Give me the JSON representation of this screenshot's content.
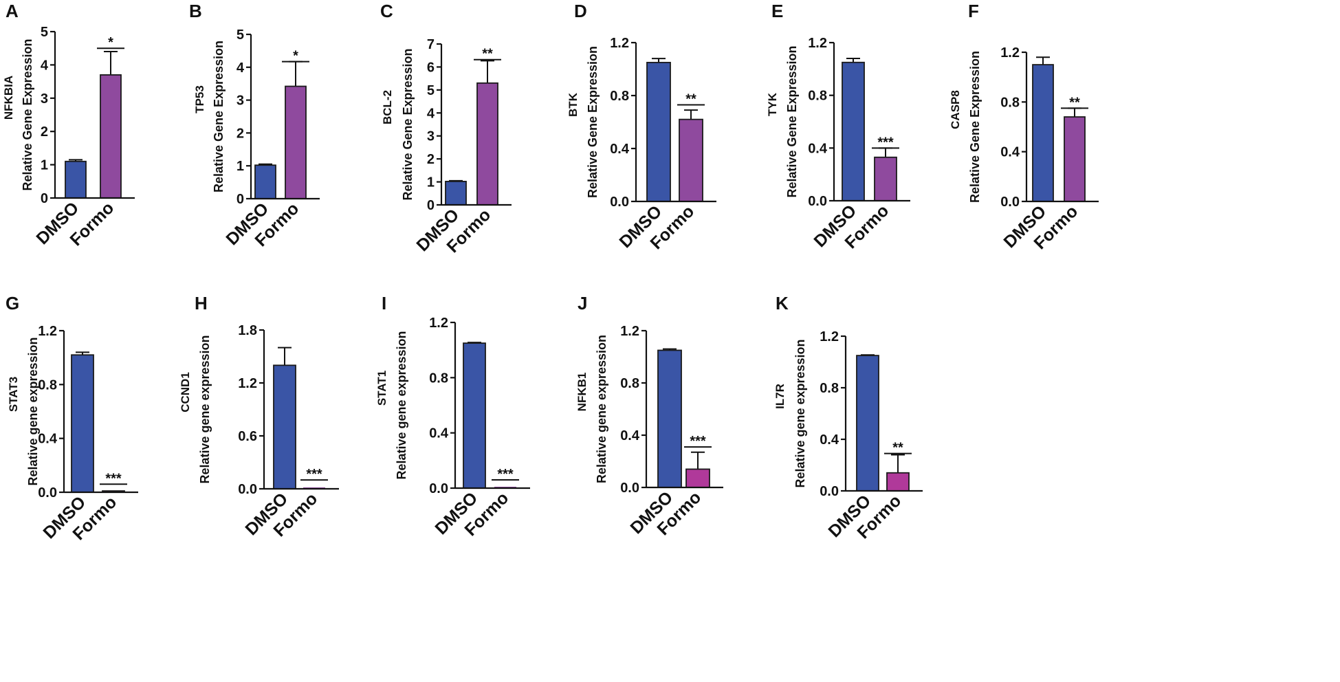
{
  "figure": {
    "categories": [
      "DMSO",
      "Formo"
    ],
    "colors": {
      "dmso": "#3a55a6",
      "formo_a": "#8f4a9e",
      "formo_b": "#b0399a",
      "outline": "#1a1a1a"
    }
  },
  "chart_data": [
    {
      "type": "bar",
      "panel": "A",
      "gene": "NFKBIA",
      "ylabel": "Relative Gene Expression",
      "categories": [
        "DMSO",
        "Formo"
      ],
      "values": [
        1.1,
        3.7
      ],
      "errors": [
        0.05,
        0.7
      ],
      "ylim": [
        0,
        5
      ],
      "yticks": [
        "0",
        "1",
        "2",
        "3",
        "4",
        "5"
      ],
      "significance": "*",
      "sig_line": 4.5
    },
    {
      "type": "bar",
      "panel": "B",
      "gene": "TP53",
      "ylabel": "Relative Gene Expression",
      "categories": [
        "DMSO",
        "Formo"
      ],
      "values": [
        1.02,
        3.42
      ],
      "errors": [
        0.03,
        0.75
      ],
      "ylim": [
        0,
        5
      ],
      "yticks": [
        "0",
        "1",
        "2",
        "3",
        "4",
        "5"
      ],
      "significance": "*",
      "sig_line": 4.17
    },
    {
      "type": "bar",
      "panel": "C",
      "gene": "BCL-2",
      "ylabel": "Relative Gene Expression",
      "categories": [
        "DMSO",
        "Formo"
      ],
      "values": [
        1.02,
        5.3
      ],
      "errors": [
        0.03,
        0.97
      ],
      "ylim": [
        0,
        7
      ],
      "yticks": [
        "0",
        "1",
        "2",
        "3",
        "4",
        "5",
        "6",
        "7"
      ],
      "significance": "**",
      "sig_line": 6.32
    },
    {
      "type": "bar",
      "panel": "D",
      "gene": "BTK",
      "ylabel": "Relative Gene Expression",
      "categories": [
        "DMSO",
        "Formo"
      ],
      "values": [
        1.05,
        0.62
      ],
      "errors": [
        0.03,
        0.07
      ],
      "ylim": [
        0,
        1.2
      ],
      "yticks": [
        "0.0",
        "0.4",
        "0.8",
        "1.2"
      ],
      "significance": "**",
      "sig_line": 0.73
    },
    {
      "type": "bar",
      "panel": "E",
      "gene": "TYK",
      "ylabel": "Relative Gene Expression",
      "categories": [
        "DMSO",
        "Formo"
      ],
      "values": [
        1.05,
        0.33
      ],
      "errors": [
        0.03,
        0.07
      ],
      "ylim": [
        0,
        1.2
      ],
      "yticks": [
        "0.0",
        "0.4",
        "0.8",
        "1.2"
      ],
      "significance": "***",
      "sig_line": 0.4
    },
    {
      "type": "bar",
      "panel": "F",
      "gene": "CASP8",
      "ylabel": "Relative Gene Expression",
      "categories": [
        "DMSO",
        "Formo"
      ],
      "values": [
        1.1,
        0.68
      ],
      "errors": [
        0.06,
        0.07
      ],
      "ylim": [
        0,
        1.2
      ],
      "yticks": [
        "0.0",
        "0.4",
        "0.8",
        "1.2"
      ],
      "significance": "**",
      "sig_line": 0.75
    },
    {
      "type": "bar",
      "panel": "G",
      "gene": "STAT3",
      "ylabel": "Relative gene expression",
      "categories": [
        "DMSO",
        "Formo"
      ],
      "values": [
        1.02,
        0.01
      ],
      "errors": [
        0.02,
        0.0
      ],
      "ylim": [
        0,
        1.2
      ],
      "yticks": [
        "0.0",
        "0.4",
        "0.8",
        "1.2"
      ],
      "significance": "***",
      "sig_line": 0.06
    },
    {
      "type": "bar",
      "panel": "H",
      "gene": "CCND1",
      "ylabel": "Relative gene expression",
      "categories": [
        "DMSO",
        "Formo"
      ],
      "values": [
        1.4,
        0.0
      ],
      "errors": [
        0.2,
        0.0
      ],
      "ylim": [
        0,
        1.8
      ],
      "yticks": [
        "0.0",
        "0.6",
        "1.2",
        "1.8"
      ],
      "significance": "***",
      "sig_line": 0.1
    },
    {
      "type": "bar",
      "panel": "I",
      "gene": "STAT1",
      "ylabel": "Relative gene expression",
      "categories": [
        "DMSO",
        "Formo"
      ],
      "values": [
        1.05,
        0.0
      ],
      "errors": [
        0.005,
        0.0
      ],
      "ylim": [
        0,
        1.2
      ],
      "yticks": [
        "0.0",
        "0.4",
        "0.8",
        "1.2"
      ],
      "significance": "***",
      "sig_line": 0.06
    },
    {
      "type": "bar",
      "panel": "J",
      "gene": "NFKB1",
      "ylabel": "Relative gene expression",
      "categories": [
        "DMSO",
        "Formo"
      ],
      "values": [
        1.05,
        0.14
      ],
      "errors": [
        0.01,
        0.13
      ],
      "ylim": [
        0,
        1.2
      ],
      "yticks": [
        "0.0",
        "0.4",
        "0.8",
        "1.2"
      ],
      "significance": "***",
      "sig_line": 0.31
    },
    {
      "type": "bar",
      "panel": "K",
      "gene": "IL7R",
      "ylabel": "Relative gene expression",
      "categories": [
        "DMSO",
        "Formo"
      ],
      "values": [
        1.05,
        0.14
      ],
      "errors": [
        0.005,
        0.14
      ],
      "ylim": [
        0,
        1.2
      ],
      "yticks": [
        "0.0",
        "0.4",
        "0.8",
        "1.2"
      ],
      "significance": "**",
      "sig_line": 0.29
    }
  ]
}
